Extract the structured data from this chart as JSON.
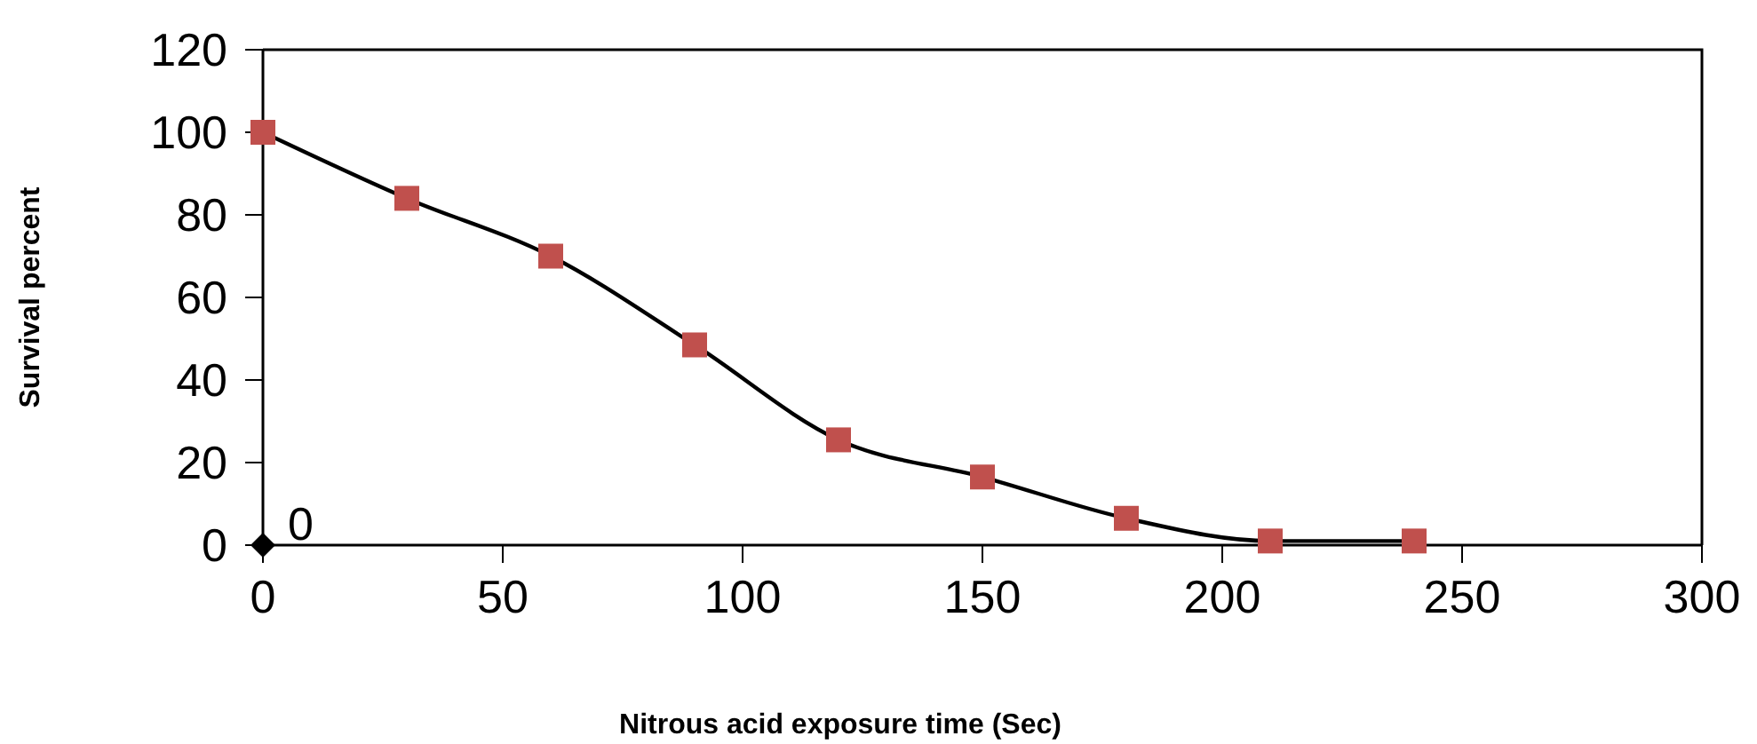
{
  "chart_data": {
    "type": "line",
    "xlabel": "Nitrous acid exposure time (Sec)",
    "ylabel": "Survival percent",
    "xlim": [
      0,
      300
    ],
    "xticks": [
      0,
      50,
      100,
      150,
      200,
      250,
      300
    ],
    "ylim": [
      0,
      120
    ],
    "yticks": [
      0,
      20,
      40,
      60,
      80,
      100,
      120
    ],
    "grid": false,
    "series": [
      {
        "marker": "square",
        "color": "#c0504d",
        "x": [
          0,
          30,
          60,
          90,
          120,
          150,
          180,
          210,
          240
        ],
        "values": [
          100,
          84,
          70,
          48.5,
          25.5,
          16.5,
          6.5,
          1,
          1
        ]
      },
      {
        "type": "scatter",
        "marker": "diamond",
        "color": "#000000",
        "x": [
          0
        ],
        "values": [
          0
        ],
        "value_labels": [
          "0"
        ]
      }
    ]
  }
}
